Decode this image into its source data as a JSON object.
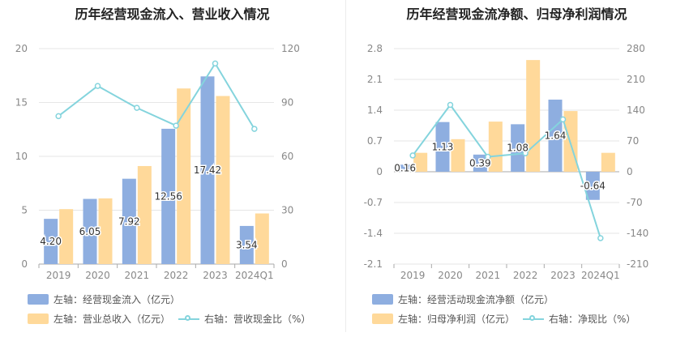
{
  "colors": {
    "bar1": "#8eaee0",
    "bar2": "#ffd99a",
    "line": "#84d4dd",
    "grid": "#e6e6e6",
    "axis": "#888888",
    "label": "#333333"
  },
  "left": {
    "title": "历年经营现金流入、营业收入情况",
    "legend": [
      {
        "text": "左轴：经营现金流入（亿元）",
        "kind": "bar1"
      },
      {
        "text": "左轴：营业总收入（亿元）",
        "kind": "bar2"
      },
      {
        "text": "右轴：营收现金比（%）",
        "kind": "line"
      }
    ]
  },
  "right": {
    "title": "历年经营现金流净额、归母净利润情况",
    "legend": [
      {
        "text": "左轴：经营活动现金流净额（亿元）",
        "kind": "bar1"
      },
      {
        "text": "左轴：归母净利润（亿元）",
        "kind": "bar2"
      },
      {
        "text": "右轴：净现比（%）",
        "kind": "line"
      }
    ]
  },
  "chart_data": [
    {
      "type": "bar",
      "title": "历年经营现金流入、营业收入情况",
      "categories": [
        "2019",
        "2020",
        "2021",
        "2022",
        "2023",
        "2024Q1"
      ],
      "left_axis": {
        "min": 0,
        "max": 20,
        "ticks": [
          0,
          5,
          10,
          15,
          20
        ]
      },
      "right_axis": {
        "min": 0,
        "max": 120,
        "ticks": [
          0,
          30,
          60,
          90,
          120
        ]
      },
      "series": [
        {
          "name": "经营现金流入（亿元）",
          "axis": "left",
          "type": "bar",
          "values": [
            4.2,
            6.05,
            7.92,
            12.56,
            17.42,
            3.54
          ],
          "labels": [
            "4.20",
            "6.05",
            "7.92",
            "12.56",
            "17.42",
            "3.54"
          ]
        },
        {
          "name": "营业总收入（亿元）",
          "axis": "left",
          "type": "bar",
          "values": [
            5.1,
            6.1,
            9.1,
            16.3,
            15.6,
            4.7
          ]
        },
        {
          "name": "营收现金比（%）",
          "axis": "right",
          "type": "line",
          "values": [
            82.4,
            99.2,
            87.0,
            77.1,
            111.7,
            75.3
          ]
        }
      ]
    },
    {
      "type": "bar",
      "title": "历年经营现金流净额、归母净利润情况",
      "categories": [
        "2019",
        "2020",
        "2021",
        "2022",
        "2023",
        "2024Q1"
      ],
      "left_axis": {
        "min": -2.1,
        "max": 2.8,
        "ticks": [
          -2.1,
          -1.4,
          -0.7,
          0,
          0.7,
          1.4,
          2.1,
          2.8
        ]
      },
      "right_axis": {
        "min": -210,
        "max": 280,
        "ticks": [
          -210,
          -140,
          -70,
          0,
          70,
          140,
          210,
          280
        ]
      },
      "series": [
        {
          "name": "经营活动现金流净额（亿元）",
          "axis": "left",
          "type": "bar",
          "values": [
            0.16,
            1.13,
            0.39,
            1.08,
            1.64,
            -0.64
          ],
          "labels": [
            "0.16",
            "1.13",
            "0.39",
            "1.08",
            "1.64",
            "-0.64"
          ]
        },
        {
          "name": "归母净利润（亿元）",
          "axis": "left",
          "type": "bar",
          "values": [
            0.43,
            0.74,
            1.14,
            2.54,
            1.38,
            0.43
          ]
        },
        {
          "name": "净现比（%）",
          "axis": "right",
          "type": "line",
          "values": [
            37,
            152,
            34,
            42,
            119,
            -151
          ]
        }
      ]
    }
  ]
}
